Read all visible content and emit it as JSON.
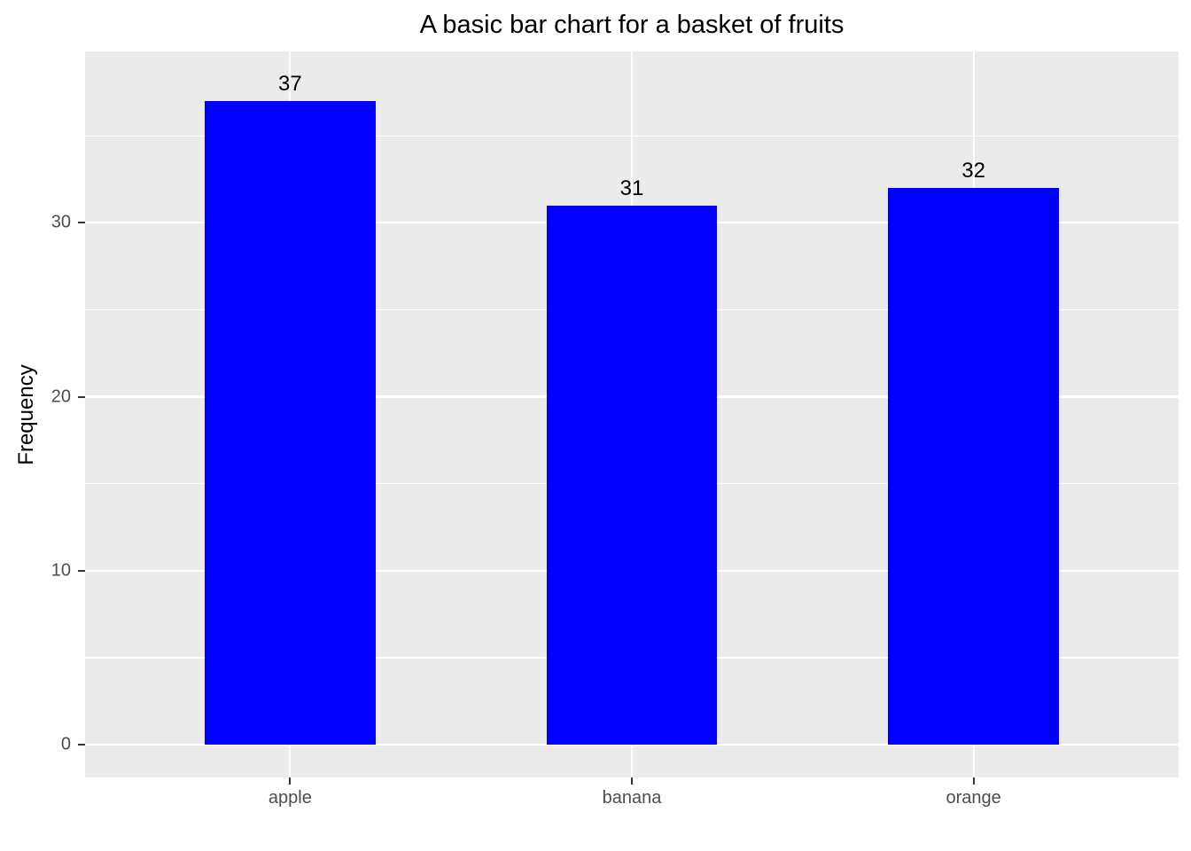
{
  "chart_data": {
    "type": "bar",
    "title": "A basic bar chart for a basket of fruits",
    "xlabel": "",
    "ylabel": "Frequency",
    "categories": [
      "apple",
      "banana",
      "orange"
    ],
    "values": [
      37,
      31,
      32
    ],
    "bar_labels": [
      "37",
      "31",
      "32"
    ],
    "yticks": [
      0,
      10,
      20,
      30
    ],
    "yticks_minor": [
      5,
      15,
      25,
      35
    ],
    "ylim": [
      -1.88,
      39.85
    ],
    "bar_width_fraction": 0.5,
    "grid": true,
    "legend_position": "none",
    "colors": {
      "bar": "#0000FF",
      "panel_background": "#EBEBEB",
      "gridline": "#FFFFFF",
      "axis_text": "#4D4D4D",
      "tick_mark": "#333333",
      "title_text": "#000000",
      "value_label_text": "#000000",
      "outer_background": "#FFFFFF"
    }
  }
}
